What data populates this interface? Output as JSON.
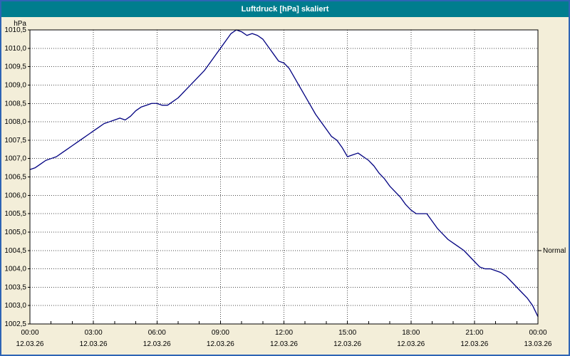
{
  "window": {
    "title": "Luftdruck [hPa] skaliert"
  },
  "colors": {
    "titlebar_bg": "#007d8e",
    "titlebar_text": "#ffffff",
    "frame_border": "#2e64b5",
    "chart_bg": "#f3eed9",
    "plot_bg": "#ffffff",
    "grid": "#4a4a4a",
    "axis": "#000000",
    "line": "#000080"
  },
  "chart_data": {
    "type": "line",
    "title": "Luftdruck [hPa] skaliert",
    "ylabel": "hPa",
    "ylim": [
      1002.5,
      1010.5
    ],
    "ytick_step": 0.5,
    "xlim_hours": [
      0,
      24
    ],
    "xtick_interval_hours": 3,
    "minor_xtick_interval_hours": 1,
    "decimal_separator": ",",
    "grid": true,
    "xticks": [
      {
        "time": "00:00",
        "date": "12.03.26"
      },
      {
        "time": "03:00",
        "date": "12.03.26"
      },
      {
        "time": "06:00",
        "date": "12.03.26"
      },
      {
        "time": "09:00",
        "date": "12.03.26"
      },
      {
        "time": "12:00",
        "date": "12.03.26"
      },
      {
        "time": "15:00",
        "date": "12.03.26"
      },
      {
        "time": "18:00",
        "date": "12.03.26"
      },
      {
        "time": "21:00",
        "date": "12.03.26"
      },
      {
        "time": "00:00",
        "date": "13.03.26"
      }
    ],
    "annotation": {
      "label": "Normal",
      "y": 1004.5
    },
    "series": [
      {
        "name": "Luftdruck",
        "color": "#000080",
        "x_start_hour": 0,
        "x_step_hours": 0.25,
        "values": [
          1006.7,
          1006.75,
          1006.85,
          1006.95,
          1007.0,
          1007.05,
          1007.15,
          1007.25,
          1007.35,
          1007.45,
          1007.55,
          1007.65,
          1007.75,
          1007.85,
          1007.95,
          1008.0,
          1008.05,
          1008.1,
          1008.05,
          1008.15,
          1008.3,
          1008.4,
          1008.45,
          1008.5,
          1008.5,
          1008.45,
          1008.45,
          1008.55,
          1008.65,
          1008.8,
          1008.95,
          1009.1,
          1009.25,
          1009.4,
          1009.6,
          1009.8,
          1010.0,
          1010.2,
          1010.4,
          1010.5,
          1010.45,
          1010.35,
          1010.4,
          1010.35,
          1010.25,
          1010.05,
          1009.85,
          1009.65,
          1009.6,
          1009.45,
          1009.2,
          1008.95,
          1008.7,
          1008.45,
          1008.2,
          1008.0,
          1007.8,
          1007.6,
          1007.5,
          1007.3,
          1007.05,
          1007.1,
          1007.15,
          1007.05,
          1006.95,
          1006.8,
          1006.6,
          1006.45,
          1006.25,
          1006.1,
          1005.95,
          1005.75,
          1005.6,
          1005.5,
          1005.5,
          1005.5,
          1005.3,
          1005.1,
          1004.95,
          1004.8,
          1004.7,
          1004.6,
          1004.5,
          1004.35,
          1004.2,
          1004.05,
          1004.0,
          1004.0,
          1003.95,
          1003.9,
          1003.8,
          1003.65,
          1003.5,
          1003.35,
          1003.2,
          1003.0,
          1002.7
        ]
      }
    ]
  }
}
